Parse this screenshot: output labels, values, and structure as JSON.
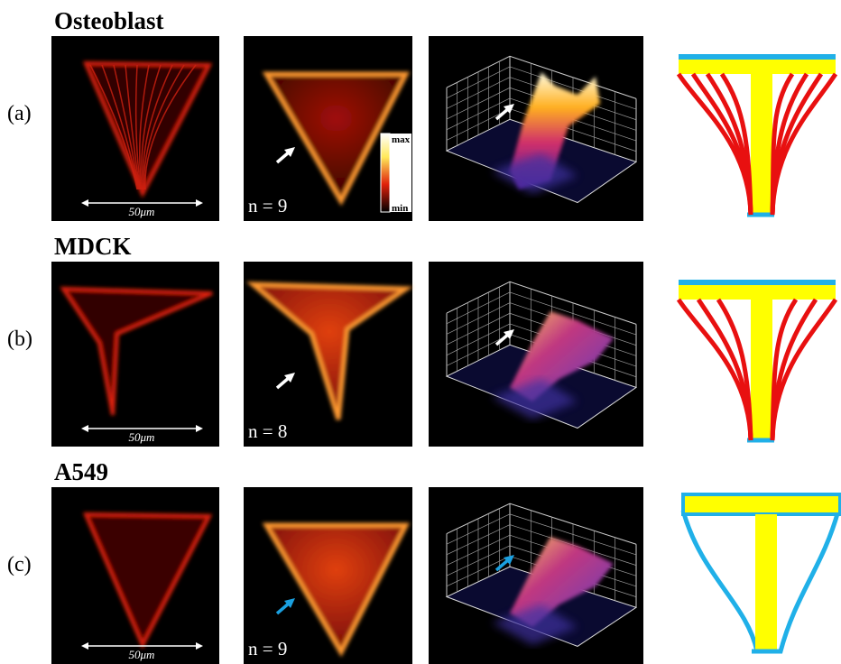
{
  "rows": [
    {
      "label": "(a)",
      "title": "Osteoblast",
      "scale_bar": "50μm",
      "n": "n = 9"
    },
    {
      "label": "(b)",
      "title": "MDCK",
      "scale_bar": "50μm",
      "n": "n = 8"
    },
    {
      "label": "(c)",
      "title": "A549",
      "scale_bar": "50μm",
      "n": "n = 9"
    }
  ],
  "colorbar": {
    "max": "max",
    "min": "min"
  }
}
